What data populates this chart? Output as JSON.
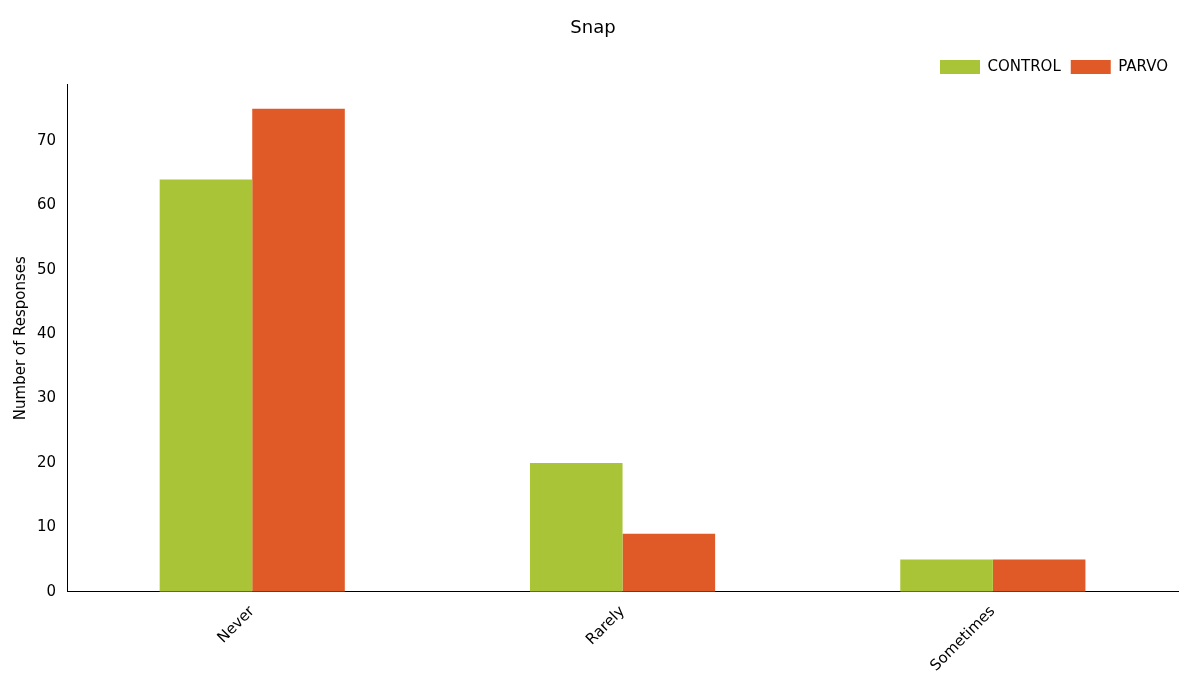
{
  "chart_data": {
    "type": "bar",
    "title": "Snap",
    "ylabel": "Number of Responses",
    "categories": [
      "Never",
      "Rarely",
      "Sometimes"
    ],
    "series": [
      {
        "name": "CONTROL",
        "color": "#a9c537",
        "values": [
          64,
          20,
          5
        ]
      },
      {
        "name": "PARVO",
        "color": "#e05a28",
        "values": [
          75,
          9,
          5
        ]
      }
    ],
    "ylim": [
      0,
      78.75
    ],
    "yticks": [
      0,
      10,
      20,
      30,
      40,
      50,
      60,
      70
    ],
    "grid": false,
    "legend": "top right"
  }
}
